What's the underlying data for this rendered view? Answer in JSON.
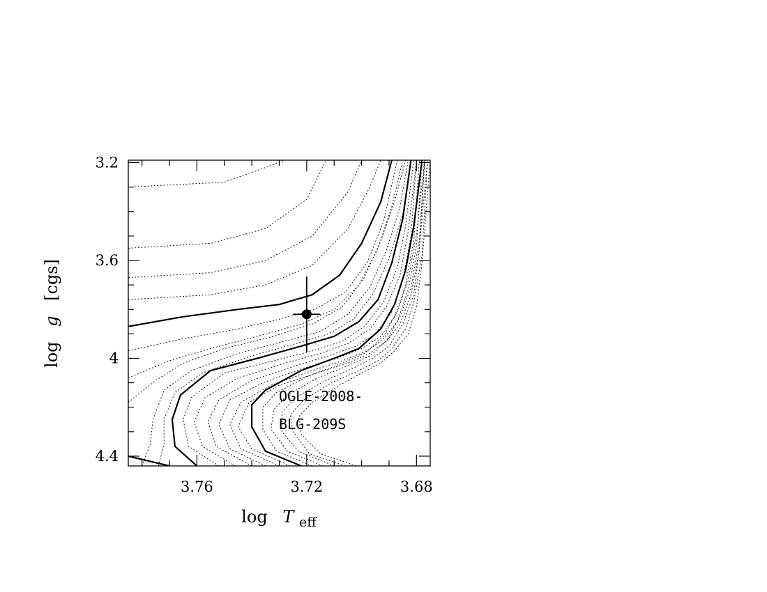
{
  "chart_data": {
    "type": "line",
    "title": "",
    "xlabel": {
      "main": "log",
      "var": "T",
      "sub": "eff"
    },
    "ylabel": {
      "main": "log",
      "var": "g",
      "unit": "[cgs]"
    },
    "xlim": [
      3.785,
      3.675
    ],
    "ylim": [
      4.44,
      3.19
    ],
    "xticks": [
      {
        "value": 3.76,
        "label": "3.76"
      },
      {
        "value": 3.72,
        "label": "3.72"
      },
      {
        "value": 3.68,
        "label": "3.68"
      }
    ],
    "yticks": [
      {
        "value": 3.2,
        "label": "3.2"
      },
      {
        "value": 3.6,
        "label": "3.6"
      },
      {
        "value": 4.0,
        "label": "4"
      },
      {
        "value": 4.4,
        "label": "4.4"
      }
    ],
    "annotation": [
      "OGLE-2008-",
      "BLG-209S"
    ],
    "target": {
      "name": "OGLE-2008-BLG-209S",
      "x": 3.72,
      "y": 3.82,
      "x_err": 0.005,
      "y_err": 0.155
    },
    "series": [
      {
        "style": "dashed",
        "points": [
          [
            3.785,
            3.3
          ],
          [
            3.75,
            3.28
          ],
          [
            3.735,
            3.22
          ],
          [
            3.728,
            3.19
          ]
        ]
      },
      {
        "style": "dashed",
        "points": [
          [
            3.785,
            3.55
          ],
          [
            3.755,
            3.53
          ],
          [
            3.735,
            3.47
          ],
          [
            3.72,
            3.35
          ],
          [
            3.713,
            3.19
          ]
        ]
      },
      {
        "style": "dashed",
        "points": [
          [
            3.785,
            3.67
          ],
          [
            3.755,
            3.65
          ],
          [
            3.735,
            3.6
          ],
          [
            3.718,
            3.5
          ],
          [
            3.705,
            3.32
          ],
          [
            3.7,
            3.19
          ]
        ]
      },
      {
        "style": "dashed",
        "points": [
          [
            3.785,
            3.76
          ],
          [
            3.755,
            3.74
          ],
          [
            3.735,
            3.7
          ],
          [
            3.718,
            3.62
          ],
          [
            3.705,
            3.47
          ],
          [
            3.697,
            3.3
          ],
          [
            3.693,
            3.19
          ]
        ]
      },
      {
        "style": "solid",
        "points": [
          [
            3.785,
            3.87
          ],
          [
            3.765,
            3.83
          ],
          [
            3.745,
            3.8
          ],
          [
            3.73,
            3.78
          ],
          [
            3.718,
            3.74
          ],
          [
            3.708,
            3.66
          ],
          [
            3.7,
            3.53
          ],
          [
            3.693,
            3.36
          ],
          [
            3.689,
            3.19
          ]
        ]
      },
      {
        "style": "dashed",
        "points": [
          [
            3.785,
            3.97
          ],
          [
            3.765,
            3.92
          ],
          [
            3.745,
            3.88
          ],
          [
            3.73,
            3.84
          ],
          [
            3.717,
            3.8
          ],
          [
            3.706,
            3.73
          ],
          [
            3.698,
            3.61
          ],
          [
            3.692,
            3.44
          ],
          [
            3.687,
            3.19
          ]
        ]
      },
      {
        "style": "dashed",
        "points": [
          [
            3.785,
            4.08
          ],
          [
            3.77,
            4.01
          ],
          [
            3.755,
            3.96
          ],
          [
            3.738,
            3.91
          ],
          [
            3.722,
            3.86
          ],
          [
            3.71,
            3.8
          ],
          [
            3.701,
            3.7
          ],
          [
            3.694,
            3.55
          ],
          [
            3.689,
            3.38
          ],
          [
            3.685,
            3.19
          ]
        ]
      },
      {
        "style": "dashed",
        "points": [
          [
            3.785,
            4.18
          ],
          [
            3.775,
            4.09
          ],
          [
            3.765,
            4.02
          ],
          [
            3.75,
            3.96
          ],
          [
            3.732,
            3.91
          ],
          [
            3.718,
            3.86
          ],
          [
            3.707,
            3.79
          ],
          [
            3.699,
            3.67
          ],
          [
            3.693,
            3.52
          ],
          [
            3.688,
            3.36
          ],
          [
            3.684,
            3.19
          ]
        ]
      },
      {
        "style": "dashed",
        "points": [
          [
            3.78,
            4.44
          ],
          [
            3.777,
            4.35
          ],
          [
            3.776,
            4.25
          ],
          [
            3.772,
            4.13
          ],
          [
            3.762,
            4.05
          ],
          [
            3.745,
            3.98
          ],
          [
            3.728,
            3.93
          ],
          [
            3.715,
            3.89
          ],
          [
            3.705,
            3.82
          ],
          [
            3.697,
            3.71
          ],
          [
            3.691,
            3.56
          ],
          [
            3.686,
            3.38
          ],
          [
            3.683,
            3.19
          ]
        ]
      },
      {
        "style": "dashed",
        "points": [
          [
            3.774,
            4.44
          ],
          [
            3.772,
            4.35
          ],
          [
            3.772,
            4.25
          ],
          [
            3.768,
            4.14
          ],
          [
            3.758,
            4.06
          ],
          [
            3.74,
            3.99
          ],
          [
            3.724,
            3.94
          ],
          [
            3.712,
            3.9
          ],
          [
            3.703,
            3.84
          ],
          [
            3.696,
            3.74
          ],
          [
            3.69,
            3.59
          ],
          [
            3.685,
            3.41
          ],
          [
            3.682,
            3.19
          ]
        ]
      },
      {
        "style": "solid",
        "points": [
          [
            3.785,
            4.4
          ],
          [
            3.77,
            4.44
          ]
        ]
      },
      {
        "style": "solid",
        "points": [
          [
            3.76,
            4.44
          ],
          [
            3.768,
            4.36
          ],
          [
            3.769,
            4.25
          ],
          [
            3.766,
            4.15
          ],
          [
            3.755,
            4.05
          ],
          [
            3.738,
            4.0
          ],
          [
            3.722,
            3.95
          ],
          [
            3.71,
            3.91
          ],
          [
            3.701,
            3.85
          ],
          [
            3.694,
            3.76
          ],
          [
            3.689,
            3.61
          ],
          [
            3.685,
            3.43
          ],
          [
            3.682,
            3.19
          ]
        ]
      },
      {
        "style": "dashed",
        "points": [
          [
            3.752,
            4.44
          ],
          [
            3.763,
            4.36
          ],
          [
            3.765,
            4.25
          ],
          [
            3.762,
            4.16
          ],
          [
            3.75,
            4.06
          ],
          [
            3.732,
            4.01
          ],
          [
            3.718,
            3.97
          ],
          [
            3.707,
            3.93
          ],
          [
            3.699,
            3.87
          ],
          [
            3.692,
            3.77
          ],
          [
            3.687,
            3.63
          ],
          [
            3.684,
            3.46
          ],
          [
            3.681,
            3.19
          ]
        ]
      },
      {
        "style": "dashed",
        "points": [
          [
            3.746,
            4.44
          ],
          [
            3.758,
            4.36
          ],
          [
            3.761,
            4.26
          ],
          [
            3.757,
            4.16
          ],
          [
            3.745,
            4.08
          ],
          [
            3.728,
            4.02
          ],
          [
            3.715,
            3.98
          ],
          [
            3.705,
            3.94
          ],
          [
            3.697,
            3.88
          ],
          [
            3.691,
            3.79
          ],
          [
            3.686,
            3.66
          ],
          [
            3.683,
            3.48
          ],
          [
            3.68,
            3.19
          ]
        ]
      },
      {
        "style": "dashed",
        "points": [
          [
            3.74,
            4.44
          ],
          [
            3.753,
            4.36
          ],
          [
            3.756,
            4.26
          ],
          [
            3.752,
            4.17
          ],
          [
            3.74,
            4.09
          ],
          [
            3.724,
            4.03
          ],
          [
            3.712,
            3.99
          ],
          [
            3.702,
            3.95
          ],
          [
            3.695,
            3.9
          ],
          [
            3.689,
            3.81
          ],
          [
            3.685,
            3.68
          ],
          [
            3.682,
            3.5
          ],
          [
            3.68,
            3.19
          ]
        ]
      },
      {
        "style": "dashed",
        "points": [
          [
            3.735,
            4.44
          ],
          [
            3.748,
            4.37
          ],
          [
            3.752,
            4.27
          ],
          [
            3.748,
            4.17
          ],
          [
            3.736,
            4.1
          ],
          [
            3.721,
            4.04
          ],
          [
            3.709,
            4.0
          ],
          [
            3.7,
            3.96
          ],
          [
            3.693,
            3.91
          ],
          [
            3.688,
            3.83
          ],
          [
            3.684,
            3.7
          ],
          [
            3.681,
            3.52
          ],
          [
            3.679,
            3.19
          ]
        ]
      },
      {
        "style": "dashed",
        "points": [
          [
            3.73,
            4.44
          ],
          [
            3.744,
            4.37
          ],
          [
            3.748,
            4.27
          ],
          [
            3.744,
            4.18
          ],
          [
            3.733,
            4.11
          ],
          [
            3.718,
            4.05
          ],
          [
            3.707,
            4.01
          ],
          [
            3.698,
            3.97
          ],
          [
            3.692,
            3.92
          ],
          [
            3.687,
            3.85
          ],
          [
            3.683,
            3.72
          ],
          [
            3.68,
            3.54
          ],
          [
            3.678,
            3.19
          ]
        ]
      },
      {
        "style": "dashed",
        "points": [
          [
            3.726,
            4.44
          ],
          [
            3.74,
            4.37
          ],
          [
            3.745,
            4.28
          ],
          [
            3.741,
            4.18
          ],
          [
            3.73,
            4.11
          ],
          [
            3.716,
            4.06
          ],
          [
            3.705,
            4.02
          ],
          [
            3.697,
            3.98
          ],
          [
            3.691,
            3.93
          ],
          [
            3.686,
            3.86
          ],
          [
            3.682,
            3.74
          ],
          [
            3.679,
            3.56
          ],
          [
            3.677,
            3.19
          ]
        ]
      },
      {
        "style": "solid",
        "points": [
          [
            3.722,
            4.44
          ],
          [
            3.735,
            4.38
          ],
          [
            3.74,
            4.28
          ],
          [
            3.74,
            4.19
          ],
          [
            3.735,
            4.13
          ],
          [
            3.722,
            4.05
          ],
          [
            3.71,
            4.0
          ],
          [
            3.701,
            3.96
          ],
          [
            3.693,
            3.88
          ],
          [
            3.688,
            3.78
          ],
          [
            3.684,
            3.64
          ],
          [
            3.681,
            3.46
          ],
          [
            3.678,
            3.19
          ]
        ]
      },
      {
        "style": "dashed",
        "points": [
          [
            3.718,
            4.44
          ],
          [
            3.731,
            4.38
          ],
          [
            3.736,
            4.29
          ],
          [
            3.736,
            4.2
          ],
          [
            3.731,
            4.14
          ],
          [
            3.719,
            4.07
          ],
          [
            3.707,
            4.02
          ],
          [
            3.699,
            3.98
          ],
          [
            3.692,
            3.91
          ],
          [
            3.687,
            3.81
          ],
          [
            3.683,
            3.68
          ],
          [
            3.68,
            3.49
          ],
          [
            3.677,
            3.19
          ]
        ]
      },
      {
        "style": "dashed",
        "points": [
          [
            3.714,
            4.44
          ],
          [
            3.727,
            4.38
          ],
          [
            3.733,
            4.29
          ],
          [
            3.732,
            4.21
          ],
          [
            3.727,
            4.15
          ],
          [
            3.716,
            4.08
          ],
          [
            3.705,
            4.03
          ],
          [
            3.697,
            3.99
          ],
          [
            3.691,
            3.93
          ],
          [
            3.686,
            3.83
          ],
          [
            3.682,
            3.71
          ],
          [
            3.679,
            3.52
          ],
          [
            3.677,
            3.19
          ]
        ]
      },
      {
        "style": "dashed",
        "points": [
          [
            3.71,
            4.44
          ],
          [
            3.723,
            4.38
          ],
          [
            3.729,
            4.3
          ],
          [
            3.729,
            4.22
          ],
          [
            3.724,
            4.16
          ],
          [
            3.713,
            4.09
          ],
          [
            3.703,
            4.04
          ],
          [
            3.696,
            4.0
          ],
          [
            3.69,
            3.95
          ],
          [
            3.685,
            3.86
          ],
          [
            3.681,
            3.74
          ],
          [
            3.679,
            3.55
          ],
          [
            3.676,
            3.19
          ]
        ]
      },
      {
        "style": "dashed",
        "points": [
          [
            3.706,
            4.44
          ],
          [
            3.719,
            4.39
          ],
          [
            3.725,
            4.3
          ],
          [
            3.726,
            4.23
          ],
          [
            3.721,
            4.17
          ],
          [
            3.711,
            4.1
          ],
          [
            3.701,
            4.05
          ],
          [
            3.694,
            4.01
          ],
          [
            3.689,
            3.96
          ],
          [
            3.684,
            3.88
          ],
          [
            3.681,
            3.77
          ],
          [
            3.678,
            3.58
          ],
          [
            3.676,
            3.19
          ]
        ]
      },
      {
        "style": "dashed",
        "points": [
          [
            3.702,
            4.44
          ],
          [
            3.715,
            4.39
          ],
          [
            3.722,
            4.31
          ],
          [
            3.723,
            4.24
          ],
          [
            3.718,
            4.18
          ],
          [
            3.708,
            4.11
          ],
          [
            3.7,
            4.06
          ],
          [
            3.693,
            4.02
          ],
          [
            3.688,
            3.97
          ],
          [
            3.683,
            3.9
          ],
          [
            3.68,
            3.79
          ],
          [
            3.678,
            3.61
          ],
          [
            3.675,
            3.19
          ]
        ]
      }
    ]
  }
}
